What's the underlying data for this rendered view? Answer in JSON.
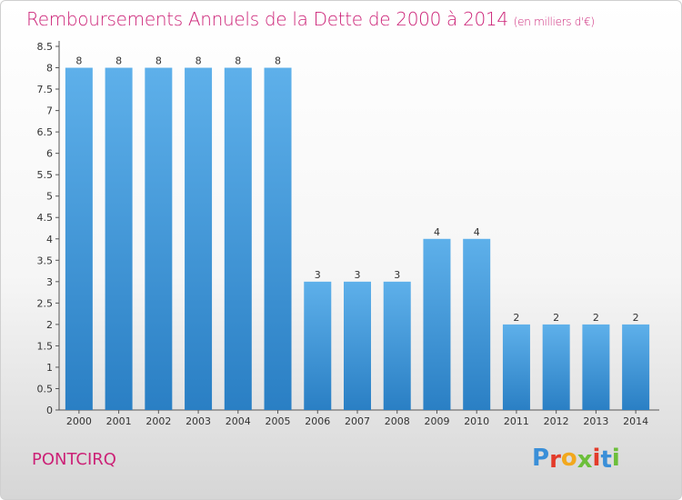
{
  "header": {
    "title": "Remboursements Annuels de la Dette de 2000 à 2014",
    "subtitle": "(en milliers d'€)"
  },
  "footer": {
    "commune": "PONTCIRQ",
    "logo_text": "Proxiti"
  },
  "colors": {
    "title": "#cc2277",
    "bar_top": "#5eb0ea",
    "bar_bottom": "#2a7fc4",
    "logo_letters": [
      "#3a8fd8",
      "#e33b2a",
      "#f2a81d",
      "#6cbf3a",
      "#e33b2a",
      "#3a8fd8",
      "#6cbf3a"
    ]
  },
  "chart_data": {
    "type": "bar",
    "categories": [
      "2000",
      "2001",
      "2002",
      "2003",
      "2004",
      "2005",
      "2006",
      "2007",
      "2008",
      "2009",
      "2010",
      "2011",
      "2012",
      "2013",
      "2014"
    ],
    "values": [
      8,
      8,
      8,
      8,
      8,
      8,
      3,
      3,
      3,
      4,
      4,
      2,
      2,
      2,
      2
    ],
    "data_labels": [
      "8",
      "8",
      "8",
      "8",
      "8",
      "8",
      "3",
      "3",
      "3",
      "4",
      "4",
      "2",
      "2",
      "2",
      "2"
    ],
    "y_ticks": [
      "0",
      "0.5",
      "1",
      "1.5",
      "2",
      "2.5",
      "3",
      "3.5",
      "4",
      "4.5",
      "5",
      "5.5",
      "6",
      "6.5",
      "7",
      "7.5",
      "8",
      "8.5"
    ],
    "ylim": [
      0,
      8.5
    ],
    "grid": false,
    "title": "Remboursements Annuels de la Dette de 2000 à 2014",
    "xlabel": "",
    "ylabel": ""
  }
}
